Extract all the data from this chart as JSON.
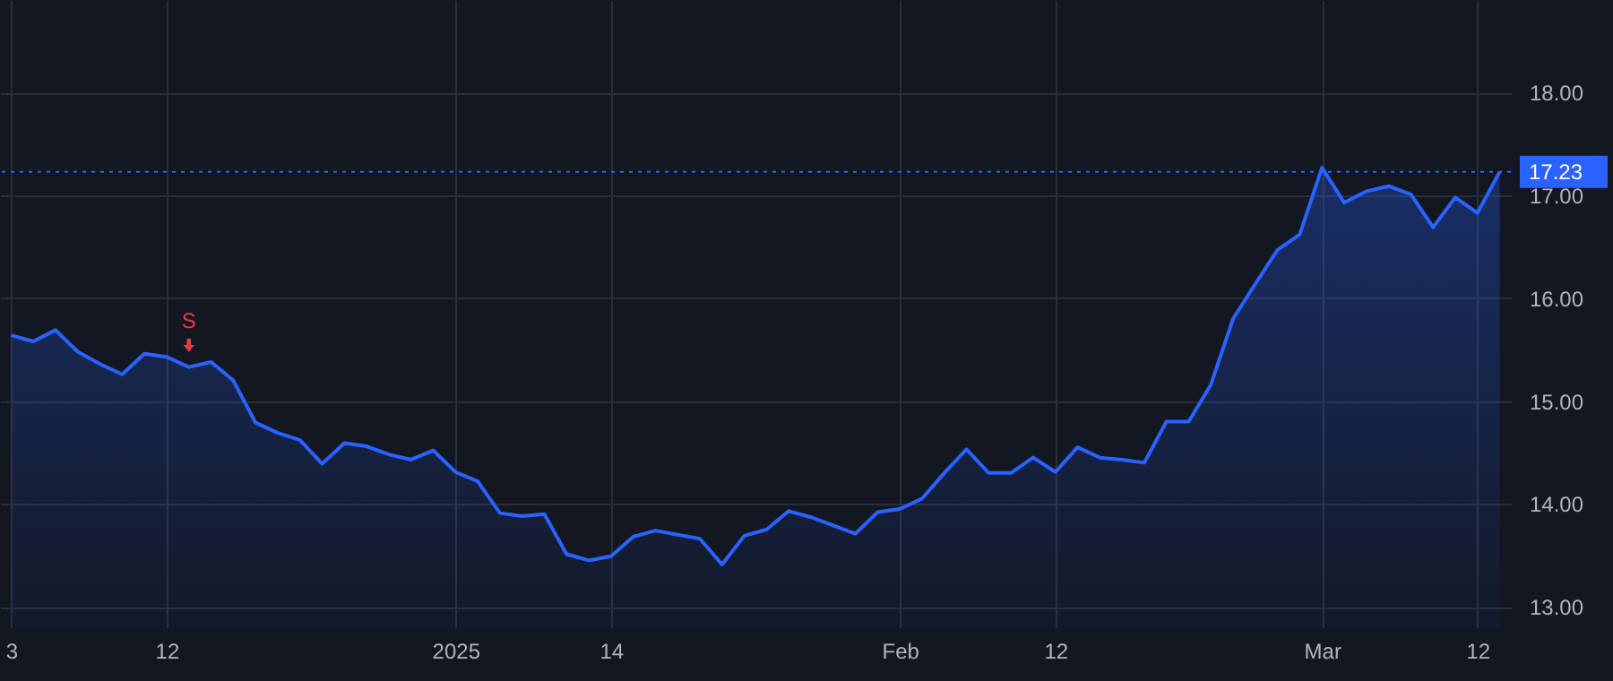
{
  "chart_data": {
    "type": "area",
    "categories": [
      "3",
      null,
      null,
      null,
      null,
      null,
      null,
      "12",
      null,
      null,
      null,
      null,
      null,
      null,
      null,
      null,
      null,
      null,
      null,
      null,
      "2025",
      null,
      null,
      null,
      null,
      null,
      null,
      "14",
      null,
      null,
      null,
      null,
      null,
      null,
      null,
      null,
      null,
      null,
      null,
      null,
      "Feb",
      null,
      null,
      null,
      null,
      null,
      null,
      "12",
      null,
      null,
      null,
      null,
      null,
      null,
      null,
      null,
      null,
      null,
      null,
      "Mar",
      null,
      null,
      null,
      null,
      null,
      null,
      "12",
      null
    ],
    "series": [
      {
        "color": "#2962ff",
        "values": [
          15.64,
          15.58,
          15.69,
          15.48,
          15.36,
          15.26,
          15.46,
          15.43,
          15.33,
          15.38,
          15.2,
          14.79,
          14.69,
          14.62,
          14.39,
          14.59,
          14.56,
          14.48,
          14.43,
          14.52,
          14.31,
          14.22,
          13.91,
          13.88,
          13.9,
          13.51,
          13.45,
          13.49,
          13.68,
          13.74,
          13.7,
          13.66,
          13.41,
          13.69,
          13.75,
          13.93,
          13.87,
          13.79,
          13.71,
          13.92,
          13.95,
          14.05,
          14.3,
          14.53,
          14.3,
          14.3,
          14.45,
          14.31,
          14.55,
          14.45,
          14.43,
          14.4,
          14.8,
          14.8,
          15.16,
          15.8,
          16.14,
          16.47,
          16.62,
          17.27,
          16.93,
          17.04,
          17.09,
          17.01,
          16.69,
          16.98,
          16.83,
          17.23
        ]
      }
    ],
    "ylim": [
      12.8,
      18.9
    ],
    "yticks": [
      {
        "value": 13,
        "label": "13.00"
      },
      {
        "value": 14,
        "label": "14.00"
      },
      {
        "value": 15,
        "label": "15.00"
      },
      {
        "value": 16,
        "label": "16.00"
      },
      {
        "value": 17,
        "label": "17.00"
      },
      {
        "value": 18,
        "label": "18.00"
      }
    ],
    "ref_lines": [
      {
        "axis": "y",
        "value": 17.23,
        "label": "17.23",
        "color": "#2962ff",
        "line_style": "dotted"
      }
    ],
    "annotations": [
      {
        "text": "S",
        "y": 15.33
      }
    ],
    "grid": true,
    "line_style": "solid"
  }
}
